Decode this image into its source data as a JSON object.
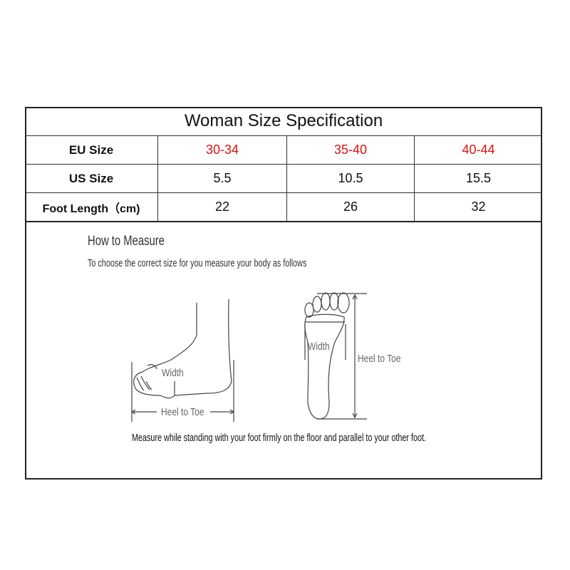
{
  "table": {
    "title": "Woman Size Specification",
    "rows": [
      {
        "label": "EU Size",
        "values": [
          "30-34",
          "35-40",
          "40-44"
        ]
      },
      {
        "label": "US Size",
        "values": [
          "5.5",
          "10.5",
          "15.5"
        ]
      },
      {
        "label": "Foot Length（cm)",
        "values": [
          "22",
          "26",
          "32"
        ]
      }
    ],
    "highlight_color": "#e01010"
  },
  "measure": {
    "heading": "How to Measure",
    "subtitle": "To choose the correct size for you measure your body as follows",
    "side_width_label": "Width",
    "side_length_label": "Heel to Toe",
    "sole_width_label": "Width",
    "sole_length_label": "Heel to Toe",
    "instruction": "Measure while standing with your foot firmly on the floor and parallel to your other foot."
  }
}
